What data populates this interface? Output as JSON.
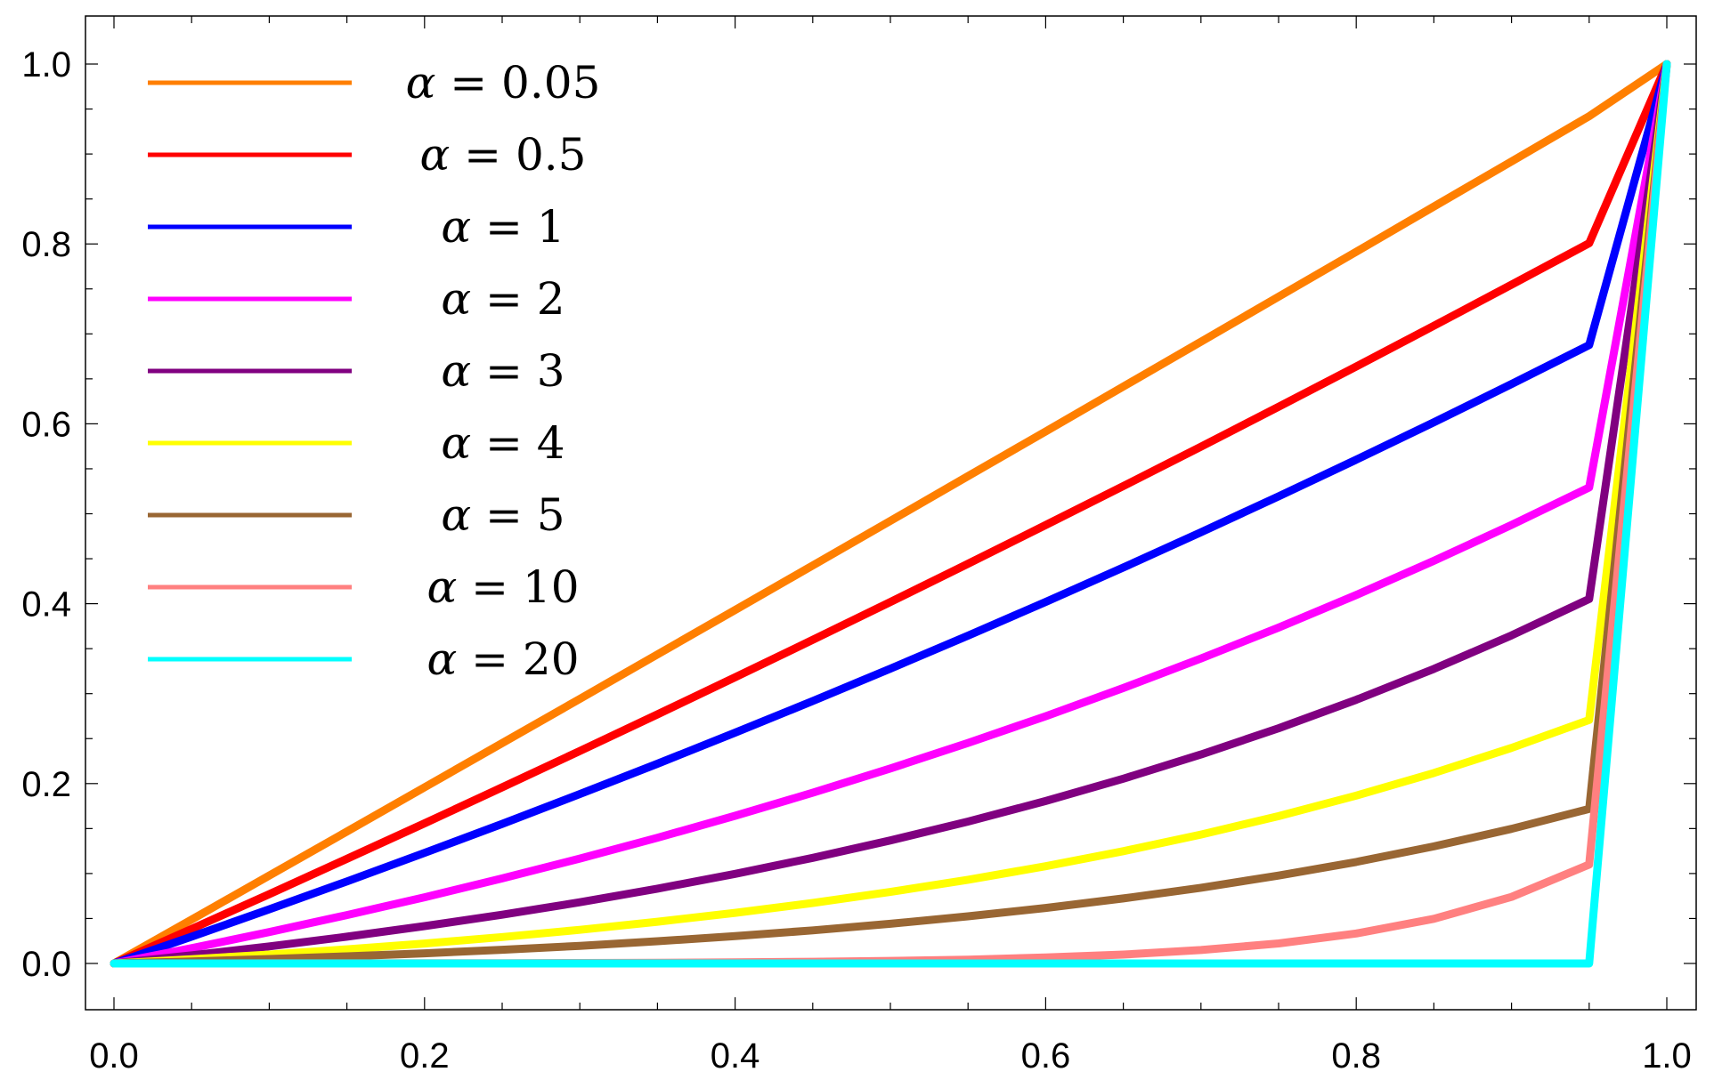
{
  "chart_data": {
    "type": "line",
    "title": "",
    "xlabel": "",
    "ylabel": "",
    "xlim": [
      -0.02,
      1.02
    ],
    "ylim": [
      -0.05,
      1.05
    ],
    "grid": false,
    "legend_position": "top-left",
    "x_ticks": [
      {
        "value": 0.0,
        "label": "0.0"
      },
      {
        "value": 0.2,
        "label": "0.2"
      },
      {
        "value": 0.4,
        "label": "0.4"
      },
      {
        "value": 0.6,
        "label": "0.6"
      },
      {
        "value": 0.8,
        "label": "0.8"
      },
      {
        "value": 1.0,
        "label": "1.0"
      }
    ],
    "y_ticks": [
      {
        "value": 0.0,
        "label": "0.0"
      },
      {
        "value": 0.2,
        "label": "0.2"
      },
      {
        "value": 0.4,
        "label": "0.4"
      },
      {
        "value": 0.6,
        "label": "0.6"
      },
      {
        "value": 0.8,
        "label": "0.8"
      },
      {
        "value": 1.0,
        "label": "1.0"
      }
    ],
    "x": [
      0.0,
      0.05,
      0.1,
      0.15,
      0.2,
      0.25,
      0.3,
      0.35,
      0.4,
      0.45,
      0.5,
      0.55,
      0.6,
      0.65,
      0.7,
      0.75,
      0.8,
      0.85,
      0.9,
      0.95,
      1.0
    ],
    "series": [
      {
        "name": "α = 0.05",
        "symbol": "α",
        "rest": " = 0.05",
        "color": "#ff7f00",
        "values": [
          0.0,
          0.0488,
          0.0977,
          0.1467,
          0.1958,
          0.245,
          0.2942,
          0.3436,
          0.393,
          0.4425,
          0.4921,
          0.5418,
          0.5915,
          0.6414,
          0.6913,
          0.7413,
          0.7913,
          0.8415,
          0.8917,
          0.942,
          1.0
        ]
      },
      {
        "name": "α = 0.5",
        "symbol": "α",
        "rest": " = 0.5",
        "color": "#ff0000",
        "values": [
          0.0,
          0.0384,
          0.0771,
          0.1163,
          0.1558,
          0.1958,
          0.2362,
          0.277,
          0.3182,
          0.3598,
          0.4019,
          0.4444,
          0.4874,
          0.5308,
          0.5746,
          0.619,
          0.6637,
          0.709,
          0.7547,
          0.8008,
          1.0
        ]
      },
      {
        "name": "α = 1",
        "symbol": "α",
        "rest": " = 1",
        "color": "#0000ff",
        "values": [
          0.0,
          0.0298,
          0.0602,
          0.0912,
          0.1229,
          0.1552,
          0.1883,
          0.2221,
          0.2566,
          0.2918,
          0.3278,
          0.3645,
          0.402,
          0.4403,
          0.4794,
          0.5194,
          0.5601,
          0.6017,
          0.6442,
          0.6875,
          1.0
        ]
      },
      {
        "name": "α = 2",
        "symbol": "α",
        "rest": " = 2",
        "color": "#ff00ff",
        "values": [
          0.0,
          0.017,
          0.0349,
          0.0538,
          0.0736,
          0.0946,
          0.1166,
          0.1398,
          0.1642,
          0.1898,
          0.2168,
          0.2452,
          0.2749,
          0.3062,
          0.3391,
          0.3735,
          0.4097,
          0.4477,
          0.4875,
          0.5293,
          1.0
        ]
      },
      {
        "name": "α = 3",
        "symbol": "α",
        "rest": " = 3",
        "color": "#800080",
        "values": [
          0.0,
          0.0091,
          0.019,
          0.0298,
          0.0415,
          0.0542,
          0.0681,
          0.0832,
          0.0996,
          0.1174,
          0.1368,
          0.1578,
          0.1806,
          0.2054,
          0.2323,
          0.2615,
          0.2932,
          0.3275,
          0.3648,
          0.4052,
          1.0
        ]
      },
      {
        "name": "α = 4",
        "symbol": "α",
        "rest": " = 4",
        "color": "#ffff00",
        "values": [
          0.0,
          0.0047,
          0.0099,
          0.0157,
          0.0222,
          0.0294,
          0.0374,
          0.0464,
          0.0563,
          0.0673,
          0.0795,
          0.0931,
          0.1081,
          0.1248,
          0.1433,
          0.1638,
          0.1866,
          0.2118,
          0.2397,
          0.2707,
          1.0
        ]
      },
      {
        "name": "α = 5",
        "symbol": "α",
        "rest": " = 5",
        "color": "#996633",
        "values": [
          0.0,
          0.0023,
          0.0049,
          0.0079,
          0.0113,
          0.0152,
          0.0196,
          0.0247,
          0.0304,
          0.0368,
          0.0441,
          0.0524,
          0.0617,
          0.0723,
          0.0842,
          0.0977,
          0.1129,
          0.1302,
          0.1497,
          0.1718,
          1.0
        ]
      },
      {
        "name": "α = 10",
        "symbol": "α",
        "rest": " = 10",
        "color": "#ff8080",
        "values": [
          0.0,
          0.0,
          0.0001,
          0.0001,
          0.0002,
          0.0003,
          0.0005,
          0.0008,
          0.0012,
          0.0019,
          0.0029,
          0.0043,
          0.0066,
          0.0099,
          0.0149,
          0.0223,
          0.0333,
          0.0497,
          0.074,
          0.11,
          1.0
        ]
      },
      {
        "name": "α = 20",
        "symbol": "α",
        "rest": " = 20",
        "color": "#00ffff",
        "values": [
          0.0,
          0.0,
          0.0,
          0.0,
          0.0,
          0.0,
          0.0,
          0.0,
          0.0,
          0.0,
          0.0,
          0.0,
          0.0,
          0.0,
          0.0,
          0.0,
          0.0,
          0.0,
          0.0,
          0.0,
          1.0
        ]
      }
    ]
  }
}
